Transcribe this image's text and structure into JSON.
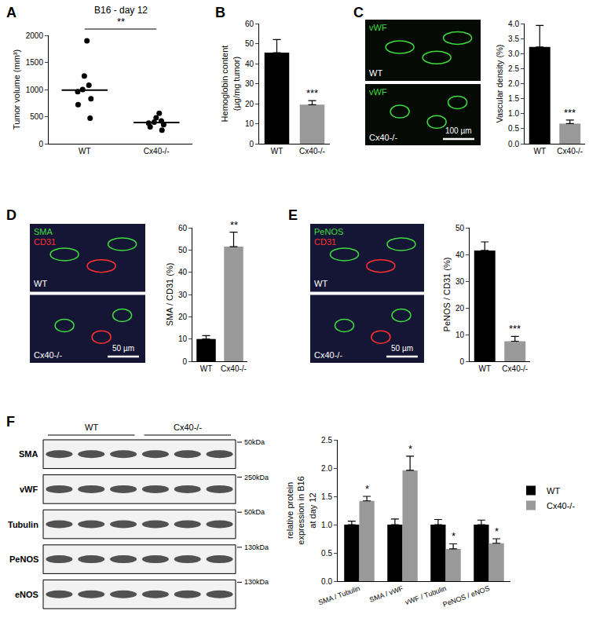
{
  "chart_data": [
    {
      "panel": "A",
      "type": "scatter",
      "title": "B16 - day 12",
      "y_label": "Tumor volume (mm³)",
      "categories": [
        "WT",
        "Cx40-/-"
      ],
      "points": [
        [
          1900,
          1250,
          1080,
          1000,
          960,
          830,
          720,
          470
        ],
        [
          560,
          480,
          420,
          400,
          380,
          350,
          310,
          250
        ]
      ],
      "medians": [
        990,
        390
      ],
      "color": "#000000",
      "ylim": [
        0,
        2000
      ],
      "yticks": [
        0,
        500,
        1000,
        1500,
        2000
      ],
      "significance": "**"
    },
    {
      "panel": "B",
      "type": "bar",
      "y_label": [
        "Hemoglobin content",
        "(µg/mg tumor)"
      ],
      "categories": [
        "WT",
        "Cx40-/-"
      ],
      "values": [
        45.5,
        19.5
      ],
      "errors": [
        6.5,
        2.0
      ],
      "colors": [
        "#000000",
        "#999999"
      ],
      "ylim": [
        0,
        60
      ],
      "yticks": [
        0,
        10,
        20,
        30,
        40,
        50,
        60
      ],
      "significance": "***"
    },
    {
      "panel": "C",
      "type": "bar",
      "y_label": "Vascular density (%)",
      "categories": [
        "WT",
        "Cx40-/-"
      ],
      "values": [
        3.22,
        0.67
      ],
      "errors": [
        0.72,
        0.12
      ],
      "colors": [
        "#000000",
        "#999999"
      ],
      "ylim": [
        0,
        4
      ],
      "yticks": [
        {
          "value": 0,
          "label": "0.0"
        },
        0.5,
        {
          "value": 1,
          "label": "1.0"
        },
        1.5,
        {
          "value": 2,
          "label": "2.0"
        },
        2.5,
        {
          "value": 3,
          "label": "3.0"
        },
        3.5,
        {
          "value": 4,
          "label": "4.0"
        }
      ],
      "significance": "***",
      "image": {
        "panels": [
          {
            "group": "WT",
            "stains": [
              {
                "text": "vWF",
                "color": "#3ddc3d"
              }
            ]
          },
          {
            "group": "Cx40-/-",
            "stains": [
              {
                "text": "vWF",
                "color": "#3ddc3d"
              }
            ]
          }
        ],
        "scale_bar": "100 µm"
      }
    },
    {
      "panel": "D",
      "type": "bar",
      "y_label": "SMA / CD31 (%)",
      "categories": [
        "WT",
        "Cx40-/-"
      ],
      "values": [
        10,
        51.5
      ],
      "errors": [
        1.5,
        6.5
      ],
      "colors": [
        "#000000",
        "#999999"
      ],
      "ylim": [
        0,
        60
      ],
      "yticks": [
        0,
        10,
        20,
        30,
        40,
        50,
        60
      ],
      "significance": "**",
      "image": {
        "panels": [
          {
            "group": "WT",
            "stains": [
              {
                "text": "SMA",
                "color": "#3ddc3d"
              },
              {
                "text": "CD31",
                "color": "#ff3030"
              }
            ]
          },
          {
            "group": "Cx40-/-",
            "stains": []
          }
        ],
        "scale_bar": "50 µm"
      }
    },
    {
      "panel": "E",
      "type": "bar",
      "y_label": "PeNOS / CD31 (%)",
      "categories": [
        "WT",
        "Cx40-/-"
      ],
      "values": [
        41.5,
        7.5
      ],
      "errors": [
        3.2,
        1.8
      ],
      "colors": [
        "#000000",
        "#999999"
      ],
      "ylim": [
        0,
        50
      ],
      "yticks": [
        0,
        10,
        20,
        30,
        40,
        50
      ],
      "significance": "***",
      "image": {
        "panels": [
          {
            "group": "WT",
            "stains": [
              {
                "text": "PeNOS",
                "color": "#3ddc3d"
              },
              {
                "text": "CD31",
                "color": "#ff3030"
              }
            ]
          },
          {
            "group": "Cx40-/-",
            "stains": []
          }
        ],
        "scale_bar": "50 µm"
      }
    },
    {
      "panel": "F",
      "type": "bar",
      "y_label": [
        "relative protein",
        "expression in B16",
        "at day 12"
      ],
      "categories": [
        "SMA / Tubulin",
        "SMA / vWF",
        "vWF / Tubulin",
        "PeNOS / eNOS"
      ],
      "series": [
        {
          "name": "WT",
          "color": "#000000",
          "values": [
            1.0,
            1.0,
            1.0,
            1.0
          ],
          "errors": [
            0.06,
            0.1,
            0.09,
            0.08
          ]
        },
        {
          "name": "Cx40-/-",
          "color": "#999999",
          "values": [
            1.42,
            1.96,
            0.57,
            0.67
          ],
          "errors": [
            0.08,
            0.25,
            0.09,
            0.08
          ],
          "significance": [
            "*",
            "*",
            "*",
            "*"
          ]
        }
      ],
      "ylim": [
        0,
        2.5
      ],
      "yticks": [
        {
          "value": 0,
          "label": "0.0"
        },
        0.5,
        {
          "value": 1,
          "label": "1.0"
        },
        1.5,
        {
          "value": 2,
          "label": "2.0"
        },
        2.5
      ],
      "legend": "upper right",
      "blot": {
        "groups": [
          "WT",
          "Cx40-/-"
        ],
        "lanes_per_group": 3,
        "rows": [
          {
            "name": "SMA",
            "size": "50kDa"
          },
          {
            "name": "vWF",
            "size": "250kDa"
          },
          {
            "name": "Tubulin",
            "size": "50kDa"
          },
          {
            "name": "PeNOS",
            "size": "130kDa"
          },
          {
            "name": "eNOS",
            "size": "130kDa"
          }
        ]
      }
    }
  ]
}
